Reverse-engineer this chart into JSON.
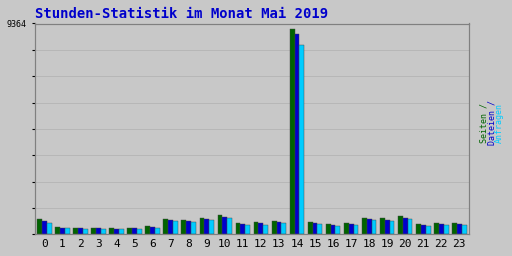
{
  "title": "Stunden-Statistik im Monat Mai 2019",
  "ytick_label": "9364",
  "hours": [
    0,
    1,
    2,
    3,
    4,
    5,
    6,
    7,
    8,
    9,
    10,
    11,
    12,
    13,
    14,
    15,
    16,
    17,
    18,
    19,
    20,
    21,
    22,
    23
  ],
  "seiten": [
    680,
    320,
    300,
    300,
    280,
    290,
    370,
    700,
    660,
    760,
    870,
    530,
    540,
    610,
    9364,
    570,
    450,
    510,
    760,
    730,
    830,
    470,
    510,
    510
  ],
  "dateien": [
    600,
    290,
    270,
    270,
    255,
    260,
    335,
    640,
    600,
    700,
    800,
    480,
    490,
    555,
    9100,
    515,
    410,
    465,
    695,
    665,
    755,
    430,
    465,
    465
  ],
  "anfragen": [
    520,
    260,
    245,
    245,
    230,
    235,
    305,
    580,
    545,
    635,
    725,
    435,
    440,
    500,
    8600,
    465,
    370,
    420,
    630,
    600,
    685,
    390,
    420,
    420
  ],
  "color_seiten": "#006400",
  "color_dateien": "#0000CC",
  "color_anfragen": "#00CCFF",
  "background_plot": "#C8C8C8",
  "background_fig": "#C8C8C8",
  "title_color": "#0000CC",
  "border_color": "#808080",
  "grid_color": "#B0B0B0",
  "ymax": 9600,
  "ytick_val": 9364,
  "n_gridlines": 8,
  "bar_width": 0.27,
  "xlabel_fontsize": 8,
  "ylabel_fontsize": 6,
  "title_fontsize": 10
}
